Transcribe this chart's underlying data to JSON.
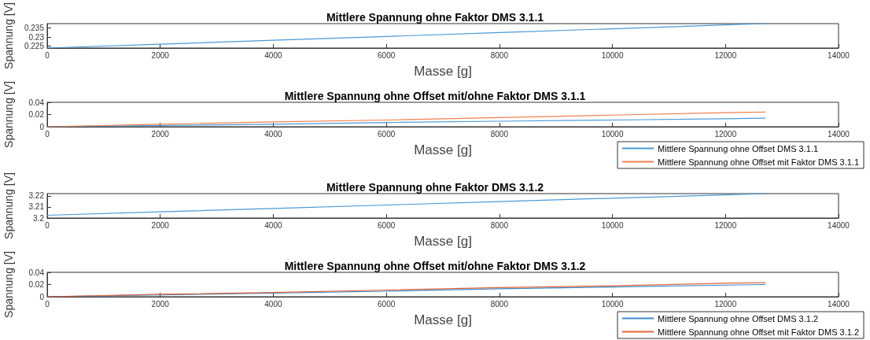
{
  "chart_data": [
    {
      "type": "line",
      "title": "Mittlere Spannung ohne Faktor DMS 3.1.1",
      "xlabel": "Masse [g]",
      "ylabel": "Spannung [V]",
      "xlim": [
        0,
        14000
      ],
      "xticks": [
        0,
        2000,
        4000,
        6000,
        8000,
        10000,
        12000,
        14000
      ],
      "ylim": [
        0.224,
        0.2373
      ],
      "yticks": [
        0.225,
        0.23,
        0.235
      ],
      "grid": false,
      "legend": false,
      "marker": "none",
      "line_style": "solid",
      "x": [
        0,
        2000,
        4000,
        6000,
        8000,
        10000,
        12000,
        12700
      ],
      "series": [
        {
          "color": "#4a9ad8",
          "values": [
            0.224,
            0.2261,
            0.2282,
            0.2303,
            0.2324,
            0.2345,
            0.2366,
            0.2373
          ]
        }
      ]
    },
    {
      "type": "line",
      "title": "Mittlere Spannung ohne Offset mit/ohne Faktor DMS 3.1.1",
      "xlabel": "Masse [g]",
      "ylabel": "Spannung [V]",
      "xlim": [
        0,
        14000
      ],
      "xticks": [
        0,
        2000,
        4000,
        6000,
        8000,
        10000,
        12000,
        14000
      ],
      "ylim": [
        0,
        0.04
      ],
      "yticks": [
        0,
        0.02,
        0.04
      ],
      "grid": false,
      "legend": "bottom right",
      "marker": "none",
      "line_style": "solid",
      "x": [
        0,
        2000,
        4000,
        6000,
        8000,
        10000,
        12000,
        12700
      ],
      "series": [
        {
          "name": "Mittlere Spannung ohne Offset DMS 3.1.1",
          "color": "#4a9ad8",
          "values": [
            0,
            0.002,
            0.004,
            0.007,
            0.009,
            0.011,
            0.013,
            0.014
          ]
        },
        {
          "name": "Mittlere Spannung ohne Offset mit Faktor DMS 3.1.1",
          "color": "#f0804f",
          "values": [
            0,
            0.004,
            0.008,
            0.011,
            0.015,
            0.019,
            0.023,
            0.024
          ]
        }
      ]
    },
    {
      "type": "line",
      "title": "Mittlere Spannung ohne Faktor DMS 3.1.2",
      "xlabel": "Masse [g]",
      "ylabel": "Spannung [V]",
      "xlim": [
        0,
        14000
      ],
      "xticks": [
        0,
        2000,
        4000,
        6000,
        8000,
        10000,
        12000,
        14000
      ],
      "ylim": [
        3.2,
        3.222
      ],
      "yticks": [
        3.2,
        3.21,
        3.22
      ],
      "grid": false,
      "legend": false,
      "marker": "none",
      "line_style": "solid",
      "x": [
        0,
        2000,
        4000,
        6000,
        8000,
        10000,
        12000,
        12700
      ],
      "series": [
        {
          "color": "#4a9ad8",
          "values": [
            3.2025,
            3.2056,
            3.2086,
            3.2117,
            3.2148,
            3.2179,
            3.2209,
            3.222
          ]
        }
      ]
    },
    {
      "type": "line",
      "title": "Mittlere Spannung ohne Offset mit/ohne Faktor DMS 3.1.2",
      "xlabel": "Masse [g]",
      "ylabel": "Spannung [V]",
      "xlim": [
        0,
        14000
      ],
      "xticks": [
        0,
        2000,
        4000,
        6000,
        8000,
        10000,
        12000,
        14000
      ],
      "ylim": [
        0,
        0.04
      ],
      "yticks": [
        0,
        0.02,
        0.04
      ],
      "grid": false,
      "legend": "bottom right",
      "marker": "none",
      "line_style": "solid",
      "x": [
        0,
        2000,
        4000,
        6000,
        8000,
        10000,
        12000,
        12700
      ],
      "series": [
        {
          "name": "Mittlere Spannung ohne Offset DMS 3.1.2",
          "color": "#3a88cc",
          "values": [
            0,
            0.003,
            0.006,
            0.009,
            0.013,
            0.016,
            0.019,
            0.02
          ]
        },
        {
          "name": "Mittlere Spannung ohne Offset mit Faktor DMS 3.1.2",
          "color": "#e0663a",
          "values": [
            0,
            0.004,
            0.007,
            0.011,
            0.015,
            0.018,
            0.022,
            0.023
          ]
        }
      ]
    }
  ]
}
